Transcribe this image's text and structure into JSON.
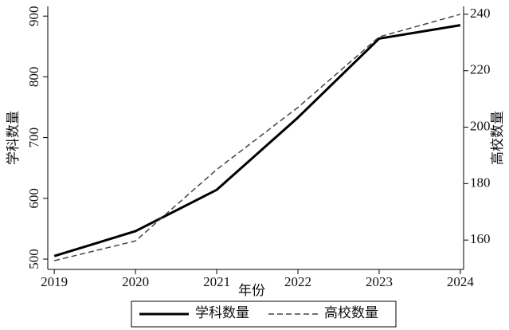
{
  "chart_data": {
    "type": "line",
    "x": [
      2019,
      2020,
      2021,
      2022,
      2023,
      2024
    ],
    "xlim": [
      2018.92,
      2024.04
    ],
    "xticks": [
      2019,
      2020,
      2021,
      2022,
      2023,
      2024
    ],
    "xlabel": "年份",
    "ylabel": "学科数量",
    "y2label": "高校数量",
    "ylim": [
      483,
      916
    ],
    "yticks": [
      500,
      600,
      700,
      800,
      900
    ],
    "y2lim": [
      149.6,
      242.8
    ],
    "y2ticks": [
      160,
      180,
      200,
      220,
      240
    ],
    "legend": "bottom",
    "series": [
      {
        "name": "学科数量",
        "color": "#000000",
        "dash": "solid",
        "values": [
          505,
          546,
          614,
          733,
          863,
          885
        ]
      },
      {
        "name": "高校数量",
        "color": "#444444",
        "dash": "dashed",
        "axis": "y2",
        "values": [
          152.7,
          159.7,
          185,
          207,
          232,
          240
        ]
      }
    ]
  }
}
